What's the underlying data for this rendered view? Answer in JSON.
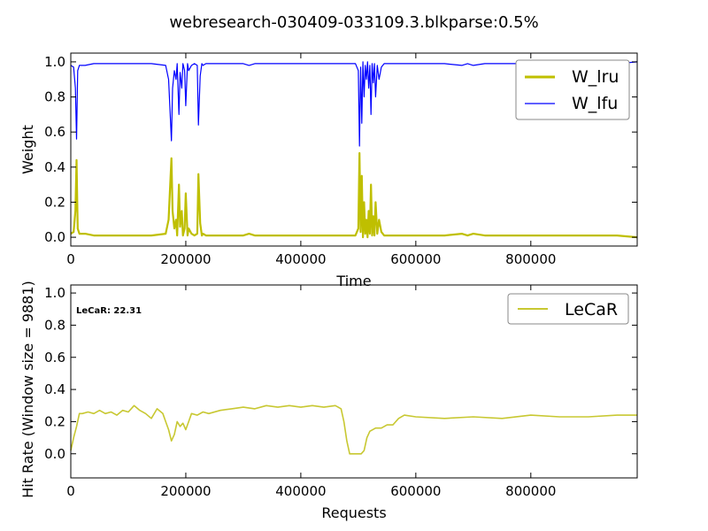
{
  "figure_title": "webresearch-030409-033109.3.blkparse:0.5%",
  "chart_data": [
    {
      "type": "line",
      "xlabel": "Time",
      "ylabel": "Weight",
      "xlim": [
        0,
        985000
      ],
      "ylim": [
        -0.05,
        1.05
      ],
      "xticks": [
        0,
        200000,
        400000,
        600000,
        800000
      ],
      "yticks": [
        0.0,
        0.2,
        0.4,
        0.6,
        0.8,
        1.0
      ],
      "xtick_labels": [
        "0",
        "200000",
        "400000",
        "600000",
        "800000"
      ],
      "ytick_labels": [
        "0.0",
        "0.2",
        "0.4",
        "0.6",
        "0.8",
        "1.0"
      ],
      "legend_position": "top-right",
      "grid": false,
      "series": [
        {
          "name": "W_lru",
          "color": "#bfbf00",
          "x": [
            0,
            5000,
            8000,
            10000,
            12000,
            15000,
            25000,
            40000,
            60000,
            100000,
            140000,
            165000,
            170000,
            175000,
            177000,
            180000,
            183000,
            185000,
            188000,
            190000,
            193000,
            195000,
            198000,
            200000,
            203000,
            205000,
            210000,
            215000,
            220000,
            222000,
            225000,
            228000,
            230000,
            235000,
            240000,
            260000,
            280000,
            300000,
            310000,
            320000,
            360000,
            400000,
            450000,
            495000,
            500000,
            502000,
            504000,
            506000,
            508000,
            510000,
            512000,
            514000,
            516000,
            518000,
            520000,
            522000,
            524000,
            526000,
            528000,
            530000,
            533000,
            536000,
            540000,
            545000,
            550000,
            560000,
            580000,
            600000,
            620000,
            650000,
            680000,
            690000,
            700000,
            720000,
            750000,
            800000,
            850000,
            900000,
            950000,
            985000
          ],
          "y": [
            0.02,
            0.03,
            0.15,
            0.44,
            0.05,
            0.02,
            0.02,
            0.01,
            0.01,
            0.01,
            0.01,
            0.02,
            0.1,
            0.45,
            0.15,
            0.05,
            0.1,
            0.01,
            0.3,
            0.06,
            0.15,
            0.01,
            0.05,
            0.25,
            0.01,
            0.05,
            0.02,
            0.01,
            0.02,
            0.36,
            0.08,
            0.01,
            0.02,
            0.01,
            0.01,
            0.01,
            0.01,
            0.01,
            0.02,
            0.01,
            0.01,
            0.01,
            0.01,
            0.01,
            0.05,
            0.48,
            0.03,
            0.35,
            0.0,
            0.2,
            0.02,
            0.1,
            0.0,
            0.15,
            0.02,
            0.3,
            0.01,
            0.12,
            0.01,
            0.2,
            0.02,
            0.1,
            0.03,
            0.01,
            0.01,
            0.01,
            0.01,
            0.01,
            0.01,
            0.01,
            0.02,
            0.01,
            0.02,
            0.01,
            0.01,
            0.01,
            0.01,
            0.01,
            0.01,
            0.0
          ]
        },
        {
          "name": "W_lfu",
          "color": "#0000ff",
          "x": [
            0,
            5000,
            8000,
            10000,
            12000,
            15000,
            25000,
            40000,
            60000,
            100000,
            140000,
            165000,
            170000,
            175000,
            177000,
            180000,
            183000,
            185000,
            188000,
            190000,
            193000,
            195000,
            198000,
            200000,
            203000,
            205000,
            210000,
            215000,
            220000,
            222000,
            225000,
            228000,
            230000,
            235000,
            240000,
            260000,
            280000,
            300000,
            310000,
            320000,
            360000,
            400000,
            450000,
            495000,
            500000,
            502000,
            504000,
            506000,
            508000,
            510000,
            512000,
            514000,
            516000,
            518000,
            520000,
            522000,
            524000,
            526000,
            528000,
            530000,
            533000,
            536000,
            540000,
            545000,
            550000,
            560000,
            580000,
            600000,
            620000,
            650000,
            680000,
            690000,
            700000,
            720000,
            750000,
            800000,
            850000,
            900000,
            950000,
            985000
          ],
          "y": [
            0.98,
            0.97,
            0.85,
            0.56,
            0.95,
            0.98,
            0.98,
            0.99,
            0.99,
            0.99,
            0.99,
            0.98,
            0.9,
            0.55,
            0.85,
            0.95,
            0.9,
            0.99,
            0.7,
            0.94,
            0.85,
            0.99,
            0.95,
            0.75,
            0.99,
            0.95,
            0.98,
            0.99,
            0.98,
            0.64,
            0.92,
            0.99,
            0.98,
            0.99,
            0.99,
            0.99,
            0.99,
            0.99,
            0.98,
            0.99,
            0.99,
            0.99,
            0.99,
            0.99,
            0.95,
            0.52,
            0.97,
            0.65,
            1.0,
            0.8,
            0.98,
            0.9,
            1.0,
            0.85,
            0.98,
            0.7,
            0.99,
            0.88,
            0.99,
            0.8,
            0.98,
            0.9,
            0.97,
            0.99,
            0.99,
            0.99,
            0.99,
            0.99,
            0.99,
            0.99,
            0.98,
            0.99,
            0.98,
            0.99,
            0.99,
            0.99,
            0.99,
            0.99,
            0.99,
            1.0
          ]
        }
      ]
    },
    {
      "type": "line",
      "xlabel": "Requests",
      "ylabel": "Hit Rate (Window size = 9881)",
      "xlim": [
        0,
        985000
      ],
      "ylim": [
        -0.15,
        1.05
      ],
      "xticks": [
        0,
        200000,
        400000,
        600000,
        800000
      ],
      "yticks": [
        0.0,
        0.2,
        0.4,
        0.6,
        0.8,
        1.0
      ],
      "xtick_labels": [
        "0",
        "200000",
        "400000",
        "600000",
        "800000"
      ],
      "ytick_labels": [
        "0.0",
        "0.2",
        "0.4",
        "0.6",
        "0.8",
        "1.0"
      ],
      "legend_position": "top-right",
      "grid": false,
      "annotation": "LeCaR:  22.31",
      "series": [
        {
          "name": "LeCaR",
          "color": "#c8c832",
          "x": [
            0,
            5000,
            10000,
            15000,
            20000,
            30000,
            40000,
            50000,
            60000,
            70000,
            80000,
            90000,
            100000,
            110000,
            120000,
            130000,
            140000,
            150000,
            160000,
            165000,
            170000,
            175000,
            180000,
            185000,
            190000,
            195000,
            200000,
            205000,
            210000,
            220000,
            230000,
            240000,
            260000,
            280000,
            300000,
            320000,
            340000,
            360000,
            380000,
            400000,
            420000,
            440000,
            460000,
            470000,
            475000,
            480000,
            485000,
            490000,
            500000,
            505000,
            510000,
            515000,
            520000,
            530000,
            540000,
            550000,
            560000,
            570000,
            580000,
            600000,
            650000,
            700000,
            750000,
            800000,
            850000,
            900000,
            950000,
            985000
          ],
          "y": [
            0.02,
            0.1,
            0.17,
            0.25,
            0.25,
            0.26,
            0.25,
            0.27,
            0.25,
            0.26,
            0.24,
            0.27,
            0.26,
            0.3,
            0.27,
            0.25,
            0.22,
            0.28,
            0.25,
            0.2,
            0.15,
            0.08,
            0.12,
            0.2,
            0.17,
            0.19,
            0.15,
            0.2,
            0.25,
            0.24,
            0.26,
            0.25,
            0.27,
            0.28,
            0.29,
            0.28,
            0.3,
            0.29,
            0.3,
            0.29,
            0.3,
            0.29,
            0.3,
            0.28,
            0.2,
            0.08,
            0.0,
            0.0,
            0.0,
            0.0,
            0.02,
            0.1,
            0.14,
            0.16,
            0.16,
            0.18,
            0.18,
            0.22,
            0.24,
            0.23,
            0.22,
            0.23,
            0.22,
            0.24,
            0.23,
            0.23,
            0.24,
            0.24
          ]
        }
      ]
    }
  ]
}
